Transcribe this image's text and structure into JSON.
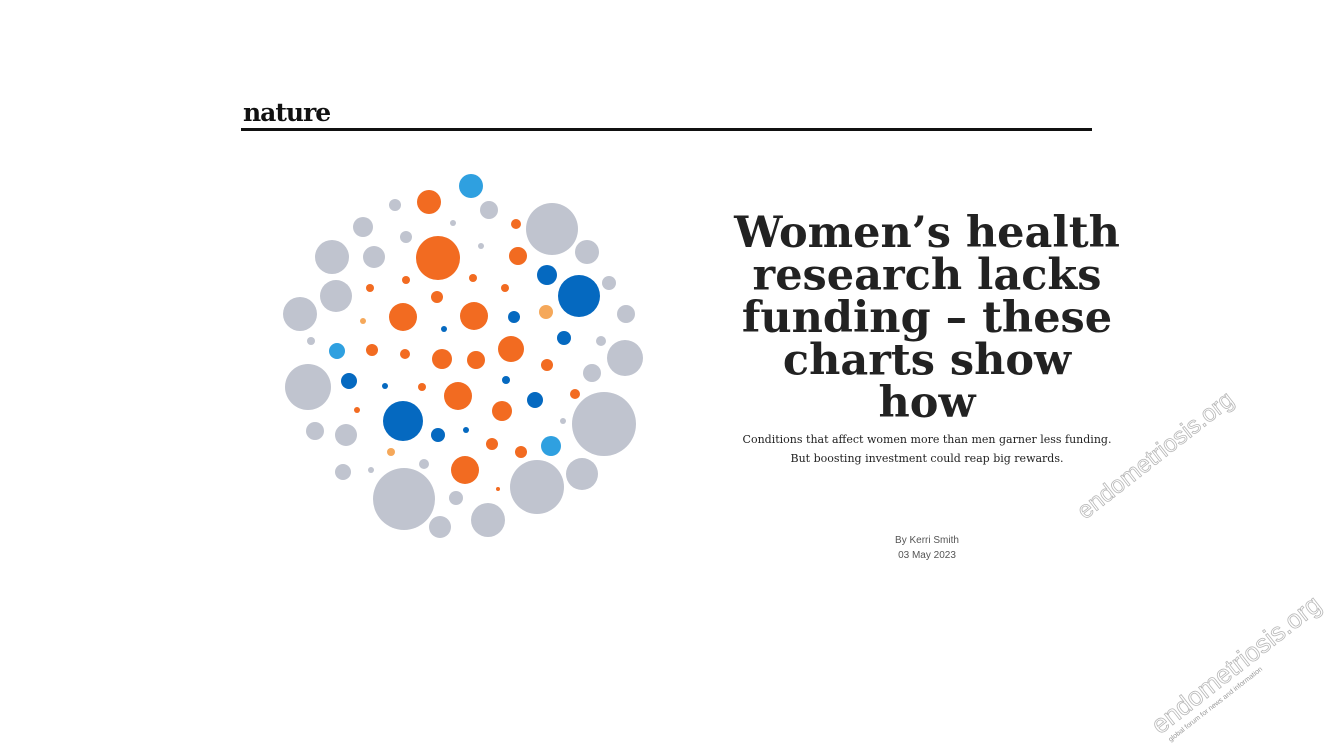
{
  "brand": "nature",
  "article": {
    "title_lines": [
      "Women’s health",
      "research lacks",
      "funding – these",
      "charts show",
      "how"
    ],
    "subtitle_lines": [
      "Conditions that affect women more than men garner less funding.",
      "But boosting investment could reap big rewards."
    ],
    "byline": "By Kerri Smith",
    "date": "03 May 2023"
  },
  "watermark": {
    "text": "endometriosis.org",
    "tagline": "global forum for news and information"
  }
}
